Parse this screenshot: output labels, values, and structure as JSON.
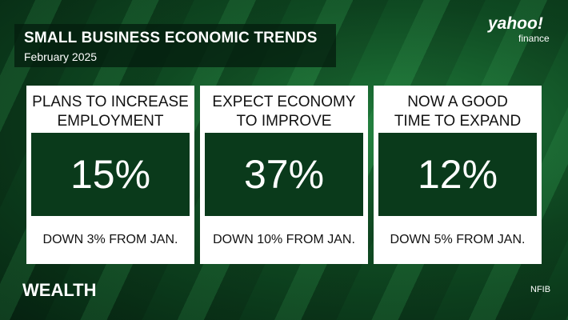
{
  "header": {
    "title": "SMALL BUSINESS ECONOMIC TRENDS",
    "subtitle": "February 2025"
  },
  "brand": {
    "name": "yahoo!",
    "section": "finance"
  },
  "cards": [
    {
      "heading_lines": [
        "PLANS TO INCREASE",
        "EMPLOYMENT"
      ],
      "value": "15%",
      "change": "DOWN 3% FROM JAN."
    },
    {
      "heading_lines": [
        "EXPECT ECONOMY",
        "TO IMPROVE"
      ],
      "value": "37%",
      "change": "DOWN 10% FROM JAN."
    },
    {
      "heading_lines": [
        "NOW A GOOD",
        "TIME TO EXPAND"
      ],
      "value": "12%",
      "change": "DOWN 5% FROM JAN."
    }
  ],
  "footer": {
    "show": "WEALTH",
    "source": "NFIB"
  }
}
